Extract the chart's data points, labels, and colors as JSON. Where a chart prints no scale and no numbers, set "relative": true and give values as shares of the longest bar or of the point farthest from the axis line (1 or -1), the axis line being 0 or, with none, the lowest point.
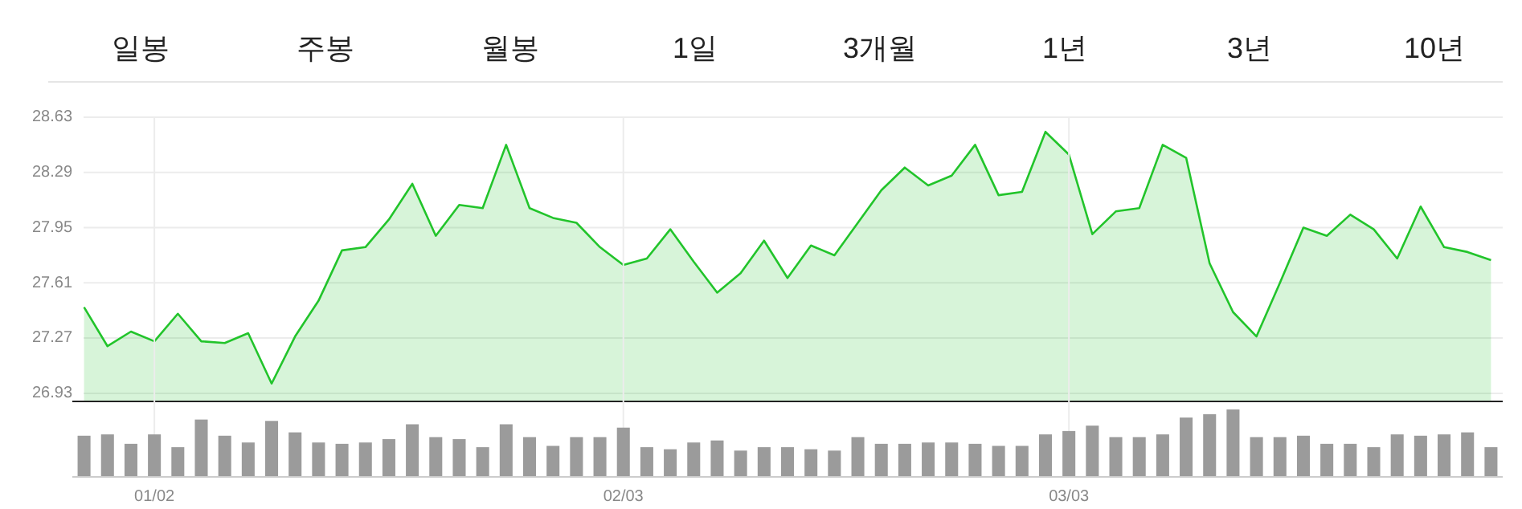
{
  "chart_data": [
    {
      "type": "other",
      "annotations": [
        "일봉",
        "주봉",
        "월봉",
        "1일",
        "3개월",
        "1년",
        "3년",
        "10년"
      ]
    },
    {
      "type": "area",
      "categories": [
        null,
        null,
        null,
        null,
        null,
        null,
        null,
        null,
        null,
        null,
        null,
        null,
        null,
        null,
        null,
        null,
        null,
        null,
        null,
        null,
        null,
        null,
        null,
        null,
        null,
        null,
        null,
        null,
        null,
        null,
        null,
        null,
        null,
        null,
        null,
        null,
        null,
        null,
        null,
        null,
        null,
        null,
        null,
        null,
        null,
        null,
        null,
        null,
        null,
        null,
        null,
        null,
        null,
        null,
        null,
        null,
        null,
        null,
        null,
        null,
        null
      ],
      "series": [
        {
          "color": "#22c42b",
          "values": [
            27.46,
            27.22,
            27.31,
            27.25,
            27.42,
            27.25,
            27.24,
            27.3,
            26.99,
            27.28,
            27.5,
            27.81,
            27.83,
            28.0,
            28.22,
            27.9,
            28.09,
            28.07,
            28.46,
            28.07,
            28.01,
            27.98,
            27.83,
            27.72,
            27.76,
            27.94,
            27.74,
            27.55,
            27.67,
            27.87,
            27.64,
            27.84,
            27.78,
            27.98,
            28.18,
            28.32,
            28.21,
            28.27,
            28.46,
            28.15,
            28.17,
            28.54,
            28.4,
            27.91,
            28.05,
            28.07,
            28.46,
            28.38,
            27.73,
            27.43,
            27.28,
            27.61,
            27.95,
            27.9,
            28.03,
            27.94,
            27.76,
            28.08,
            27.83,
            27.8,
            27.75
          ]
        }
      ],
      "ylim": [
        26.88,
        28.63
      ],
      "yticks": [
        26.93,
        27.27,
        27.61,
        27.95,
        28.29,
        28.63
      ],
      "grid": "y",
      "tick_labels": "y"
    },
    {
      "type": "bar",
      "relative": true,
      "categories": [
        null,
        null,
        null,
        "01/02",
        null,
        null,
        null,
        null,
        null,
        null,
        null,
        null,
        null,
        null,
        null,
        null,
        null,
        null,
        null,
        null,
        null,
        null,
        null,
        "02/03",
        null,
        null,
        null,
        null,
        null,
        null,
        null,
        null,
        null,
        null,
        null,
        null,
        null,
        null,
        null,
        null,
        null,
        null,
        "03/03",
        null,
        null,
        null,
        null,
        null,
        null,
        null,
        null,
        null,
        null,
        null,
        null,
        null,
        null,
        null,
        null,
        null,
        null
      ],
      "series": [
        {
          "color": "#9b9b9b",
          "values": [
            0.61,
            0.63,
            0.49,
            0.63,
            0.44,
            0.85,
            0.61,
            0.51,
            0.83,
            0.66,
            0.51,
            0.49,
            0.51,
            0.56,
            0.78,
            0.59,
            0.56,
            0.44,
            0.78,
            0.59,
            0.46,
            0.59,
            0.59,
            0.73,
            0.44,
            0.41,
            0.51,
            0.54,
            0.39,
            0.44,
            0.44,
            0.41,
            0.39,
            0.59,
            0.49,
            0.49,
            0.51,
            0.51,
            0.49,
            0.46,
            0.46,
            0.63,
            0.68,
            0.76,
            0.59,
            0.59,
            0.63,
            0.88,
            0.93,
            1.0,
            0.59,
            0.59,
            0.61,
            0.49,
            0.49,
            0.44,
            0.63,
            0.61,
            0.63,
            0.66,
            0.44
          ]
        }
      ],
      "grid": "x",
      "tick_labels": "x"
    }
  ]
}
